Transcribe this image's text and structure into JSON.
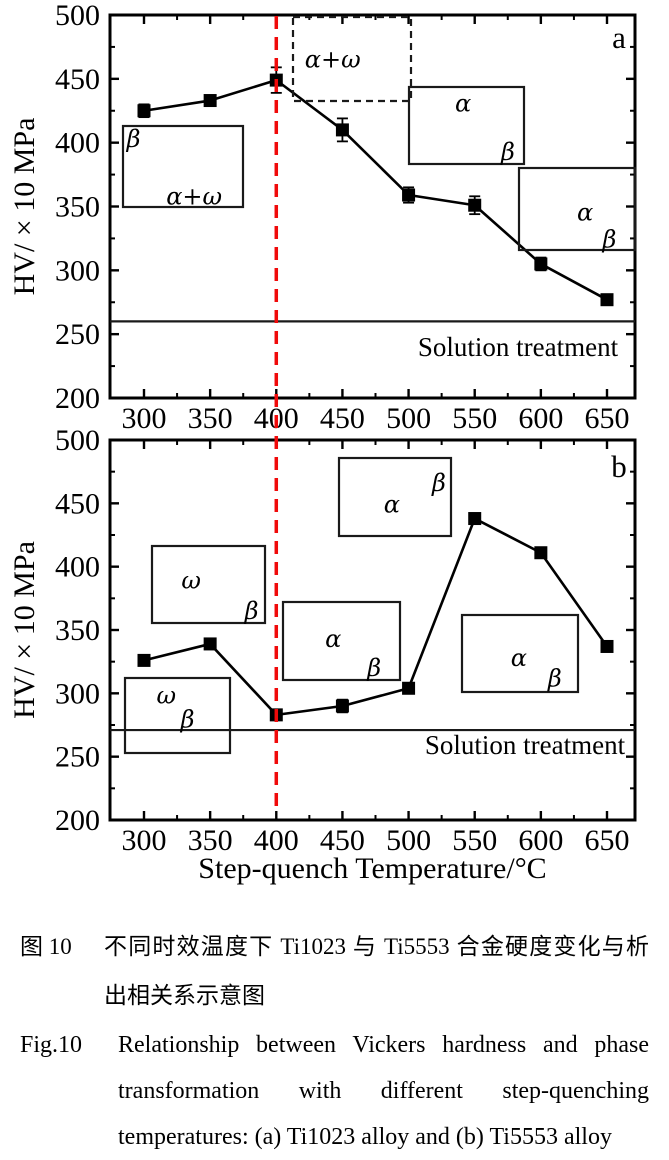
{
  "colors": {
    "axis": "#000000",
    "marker": "#000000",
    "red_dashed": "#f00a0a",
    "lath_blue": "#5b87c3",
    "hatch_fill": "#5e8ac2",
    "hatch_line": "#2d4f87",
    "hatch_label": "#0f1e3d",
    "dot_orange": "#e8750f",
    "solution_line": "#1a1a1a"
  },
  "chart_data": [
    {
      "type": "line",
      "panel_label": "a",
      "series_name": "Ti1023 hardness",
      "ylabel": "HV/ × 10 MPa",
      "xlabel": "",
      "x": [
        300,
        350,
        400,
        450,
        500,
        550,
        600,
        650
      ],
      "values": [
        425,
        433,
        449,
        410,
        359,
        351,
        305,
        277
      ],
      "errors": [
        5,
        4,
        10,
        9,
        6,
        7,
        5,
        4
      ],
      "xticks": [
        300,
        350,
        400,
        450,
        500,
        550,
        600,
        650
      ],
      "yticks": [
        200,
        250,
        300,
        350,
        400,
        450,
        500
      ],
      "ylim": [
        200,
        500
      ],
      "grid": false,
      "legend": "none",
      "solution_line": {
        "value": 260,
        "label": "Solution treatment"
      },
      "reference_line_x": 400,
      "insets": [
        {
          "kind": "laths_dots",
          "x": 123,
          "y": 126,
          "w": 120,
          "h": 81,
          "labels": [
            {
              "text": "β",
              "fx": 0.03,
              "fy": 0.26
            },
            {
              "text": "α+ω",
              "fx": 0.36,
              "fy": 0.97
            }
          ]
        },
        {
          "kind": "dense_hatch",
          "x": 293,
          "y": 17,
          "w": 118,
          "h": 84,
          "labels": [
            {
              "text": "α+ω",
              "fx": 0.1,
              "fy": 0.6
            }
          ],
          "orange_dot": {
            "fx": 0.57,
            "fy": 0.5
          }
        },
        {
          "kind": "crosshatch",
          "x": 409,
          "y": 87,
          "w": 115,
          "h": 77,
          "labels": [
            {
              "text": "α",
              "fx": 0.4,
              "fy": 0.32
            },
            {
              "text": "β",
              "fx": 0.8,
              "fy": 0.95
            }
          ]
        },
        {
          "kind": "thick_cross",
          "x": 519,
          "y": 168,
          "w": 116,
          "h": 82,
          "labels": [
            {
              "text": "α",
              "fx": 0.5,
              "fy": 0.64
            },
            {
              "text": "β",
              "fx": 0.72,
              "fy": 0.97
            }
          ]
        }
      ]
    },
    {
      "type": "line",
      "panel_label": "b",
      "series_name": "Ti5553 hardness",
      "ylabel": "HV/ × 10 MPa",
      "xlabel": "Step-quench Temperature/°C",
      "x": [
        300,
        350,
        400,
        450,
        500,
        550,
        600,
        650
      ],
      "values": [
        326,
        339,
        283,
        290,
        304,
        438,
        411,
        337
      ],
      "errors": [
        0,
        0,
        4,
        5,
        4,
        0,
        0,
        0
      ],
      "xticks": [
        300,
        350,
        400,
        450,
        500,
        550,
        600,
        650
      ],
      "yticks": [
        200,
        250,
        300,
        350,
        400,
        450,
        500
      ],
      "ylim": [
        200,
        500
      ],
      "grid": false,
      "legend": "none",
      "solution_line": {
        "value": 271,
        "label": "Solution treatment"
      },
      "reference_line_x": 400,
      "insets": [
        {
          "kind": "dots_many",
          "x": 152,
          "y": 546,
          "w": 113,
          "h": 77,
          "labels": [
            {
              "text": "ω",
              "fx": 0.26,
              "fy": 0.55
            },
            {
              "text": "β",
              "fx": 0.82,
              "fy": 0.95
            }
          ]
        },
        {
          "kind": "crosshatch_dense",
          "x": 339,
          "y": 458,
          "w": 112,
          "h": 78,
          "labels": [
            {
              "text": "α",
              "fx": 0.4,
              "fy": 0.7
            },
            {
              "text": "β",
              "fx": 0.83,
              "fy": 0.42
            }
          ]
        },
        {
          "kind": "dots_few",
          "x": 125,
          "y": 678,
          "w": 105,
          "h": 75,
          "labels": [
            {
              "text": "ω",
              "fx": 0.3,
              "fy": 0.34
            },
            {
              "text": "β",
              "fx": 0.53,
              "fy": 0.66
            }
          ]
        },
        {
          "kind": "diag_laths",
          "x": 283,
          "y": 602,
          "w": 117,
          "h": 78,
          "labels": [
            {
              "text": "α",
              "fx": 0.36,
              "fy": 0.58
            },
            {
              "text": "β",
              "fx": 0.72,
              "fy": 0.95
            }
          ]
        },
        {
          "kind": "cross_pair",
          "x": 462,
          "y": 615,
          "w": 116,
          "h": 77,
          "labels": [
            {
              "text": "α",
              "fx": 0.42,
              "fy": 0.66
            },
            {
              "text": "β",
              "fx": 0.74,
              "fy": 0.93
            }
          ]
        }
      ]
    }
  ],
  "captions": {
    "zh_label": "图 10",
    "zh_body": "不同时效温度下 Ti1023 与 Ti5553 合金硬度变化与析出相关系示意图",
    "en_label": "Fig.10",
    "en_body": "Relationship between Vickers hardness and phase transformation with different step-quenching temperatures: (a) Ti1023 alloy and (b) Ti5553 alloy"
  }
}
